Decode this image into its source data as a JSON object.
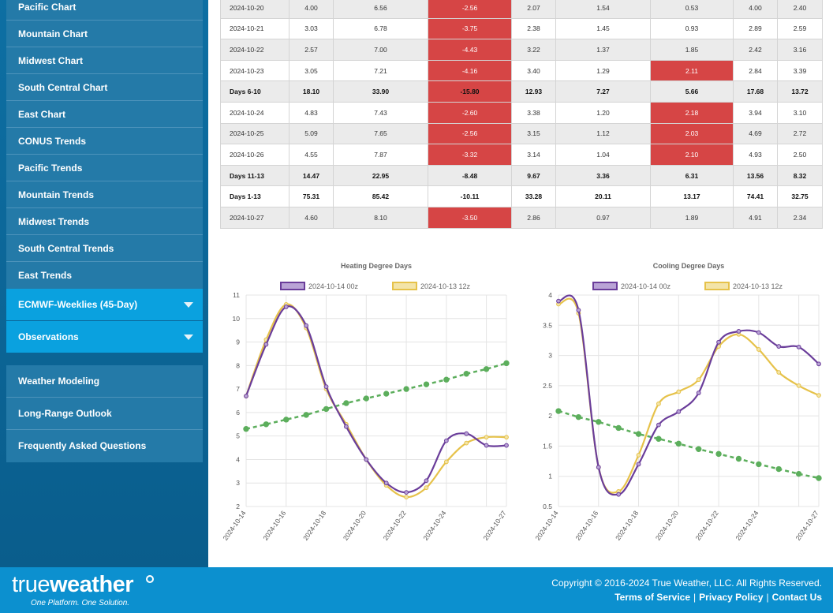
{
  "sidebar": {
    "group1": [
      "Pacific Chart",
      "Mountain Chart",
      "Midwest Chart",
      "South Central Chart",
      "East Chart",
      "CONUS Trends",
      "Pacific Trends",
      "Mountain Trends",
      "Midwest Trends",
      "South Central Trends",
      "East Trends"
    ],
    "dropdowns": [
      "ECMWF-Weeklies (45-Day)",
      "Observations"
    ],
    "group2": [
      "Weather Modeling",
      "Long-Range Outlook",
      "Frequently Asked Questions"
    ]
  },
  "table": {
    "rows": [
      {
        "cells": [
          "2024-10-20",
          "4.00",
          "6.56",
          "-2.56",
          "2.07",
          "1.54",
          "0.53",
          "4.00",
          "2.40"
        ],
        "hot": [
          3
        ],
        "summary": false
      },
      {
        "cells": [
          "2024-10-21",
          "3.03",
          "6.78",
          "-3.75",
          "2.38",
          "1.45",
          "0.93",
          "2.89",
          "2.59"
        ],
        "hot": [
          3
        ],
        "summary": false
      },
      {
        "cells": [
          "2024-10-22",
          "2.57",
          "7.00",
          "-4.43",
          "3.22",
          "1.37",
          "1.85",
          "2.42",
          "3.16"
        ],
        "hot": [
          3
        ],
        "summary": false
      },
      {
        "cells": [
          "2024-10-23",
          "3.05",
          "7.21",
          "-4.16",
          "3.40",
          "1.29",
          "2.11",
          "2.84",
          "3.39"
        ],
        "hot": [
          3,
          6
        ],
        "summary": false
      },
      {
        "cells": [
          "Days 6-10",
          "18.10",
          "33.90",
          "-15.80",
          "12.93",
          "7.27",
          "5.66",
          "17.68",
          "13.72"
        ],
        "hot": [
          3
        ],
        "summary": true
      },
      {
        "cells": [
          "2024-10-24",
          "4.83",
          "7.43",
          "-2.60",
          "3.38",
          "1.20",
          "2.18",
          "3.94",
          "3.10"
        ],
        "hot": [
          3,
          6
        ],
        "summary": false
      },
      {
        "cells": [
          "2024-10-25",
          "5.09",
          "7.65",
          "-2.56",
          "3.15",
          "1.12",
          "2.03",
          "4.69",
          "2.72"
        ],
        "hot": [
          3,
          6
        ],
        "summary": false
      },
      {
        "cells": [
          "2024-10-26",
          "4.55",
          "7.87",
          "-3.32",
          "3.14",
          "1.04",
          "2.10",
          "4.93",
          "2.50"
        ],
        "hot": [
          3,
          6
        ],
        "summary": false
      },
      {
        "cells": [
          "Days 11-13",
          "14.47",
          "22.95",
          "-8.48",
          "9.67",
          "3.36",
          "6.31",
          "13.56",
          "8.32"
        ],
        "hot": [],
        "summary": true
      },
      {
        "cells": [
          "Days 1-13",
          "75.31",
          "85.42",
          "-10.11",
          "33.28",
          "20.11",
          "13.17",
          "74.41",
          "32.75"
        ],
        "hot": [],
        "summary": true
      },
      {
        "cells": [
          "2024-10-27",
          "4.60",
          "8.10",
          "-3.50",
          "2.86",
          "0.97",
          "1.89",
          "4.91",
          "2.34"
        ],
        "hot": [
          3
        ],
        "summary": false
      }
    ]
  },
  "chart_data": [
    {
      "type": "line",
      "title": "Heating Degree Days",
      "x": [
        "2024-10-14",
        "2024-10-15",
        "2024-10-16",
        "2024-10-17",
        "2024-10-18",
        "2024-10-19",
        "2024-10-20",
        "2024-10-21",
        "2024-10-22",
        "2024-10-23",
        "2024-10-24",
        "2024-10-25",
        "2024-10-26",
        "2024-10-27"
      ],
      "xticks": [
        "2024-10-14",
        "2024-10-16",
        "2024-10-18",
        "2024-10-20",
        "2024-10-22",
        "2024-10-24",
        "2024-10-27"
      ],
      "ylim": [
        2,
        11
      ],
      "yticks": [
        2,
        3,
        4,
        5,
        6,
        7,
        8,
        9,
        10,
        11
      ],
      "legend_position": "top",
      "series": [
        {
          "name": "2024-10-14 00z",
          "color": "#6a3d9a",
          "fill": "#b9a3d6",
          "values": [
            6.7,
            8.9,
            10.5,
            9.7,
            7.1,
            5.4,
            4.0,
            3.0,
            2.6,
            3.1,
            4.8,
            5.1,
            4.6,
            4.6
          ]
        },
        {
          "name": "2024-10-13 12z",
          "color": "#e6c24a",
          "fill": "#f3e4a8",
          "values": [
            6.7,
            9.1,
            10.6,
            9.6,
            7.0,
            5.5,
            4.0,
            2.9,
            2.4,
            2.8,
            3.9,
            4.7,
            4.95,
            4.95
          ]
        },
        {
          "name": "",
          "color": "#5cae5c",
          "dashed": true,
          "values": [
            5.3,
            5.5,
            5.7,
            5.9,
            6.15,
            6.4,
            6.6,
            6.8,
            7.0,
            7.2,
            7.4,
            7.65,
            7.85,
            8.1
          ]
        }
      ]
    },
    {
      "type": "line",
      "title": "Cooling Degree Days",
      "x": [
        "2024-10-14",
        "2024-10-15",
        "2024-10-16",
        "2024-10-17",
        "2024-10-18",
        "2024-10-19",
        "2024-10-20",
        "2024-10-21",
        "2024-10-22",
        "2024-10-23",
        "2024-10-24",
        "2024-10-25",
        "2024-10-26",
        "2024-10-27"
      ],
      "xticks": [
        "2024-10-14",
        "2024-10-16",
        "2024-10-18",
        "2024-10-20",
        "2024-10-22",
        "2024-10-24",
        "2024-10-27"
      ],
      "ylim": [
        0.5,
        4.0
      ],
      "yticks": [
        0.5,
        1.0,
        1.5,
        2.0,
        2.5,
        3.0,
        3.5,
        4.0
      ],
      "legend_position": "top",
      "series": [
        {
          "name": "2024-10-14 00z",
          "color": "#6a3d9a",
          "fill": "#b9a3d6",
          "values": [
            3.9,
            3.75,
            1.15,
            0.7,
            1.2,
            1.85,
            2.07,
            2.38,
            3.22,
            3.4,
            3.38,
            3.15,
            3.14,
            2.86
          ]
        },
        {
          "name": "2024-10-13 12z",
          "color": "#e6c24a",
          "fill": "#f3e4a8",
          "values": [
            3.85,
            3.7,
            1.15,
            0.75,
            1.35,
            2.2,
            2.4,
            2.6,
            3.15,
            3.35,
            3.1,
            2.72,
            2.5,
            2.34
          ]
        },
        {
          "name": "",
          "color": "#5cae5c",
          "dashed": true,
          "values": [
            2.08,
            1.98,
            1.9,
            1.8,
            1.7,
            1.62,
            1.54,
            1.45,
            1.37,
            1.29,
            1.2,
            1.12,
            1.04,
            0.97
          ]
        }
      ]
    }
  ],
  "footer": {
    "logo_word_1": "true",
    "logo_word_2": "weather",
    "logo_tagline": "One Platform. One Solution.",
    "copyright": "Copyright © 2016-2024 True Weather, LLC. All Rights Reserved.",
    "links": [
      "Terms of Service",
      "Privacy Policy",
      "Contact Us"
    ],
    "link_separator": "|"
  }
}
